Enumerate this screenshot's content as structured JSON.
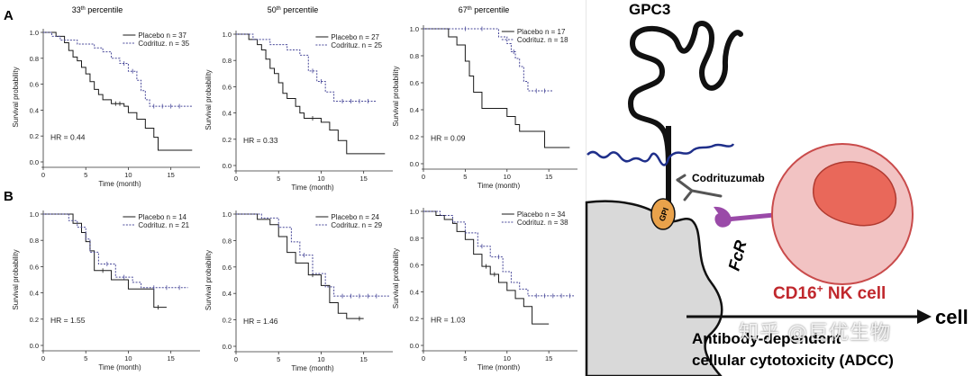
{
  "rows": [
    {
      "letter": "A"
    },
    {
      "letter": "B"
    }
  ],
  "col_titles": [
    {
      "base": "33",
      "sup": "th",
      "rest": " percentile"
    },
    {
      "base": "50",
      "sup": "th",
      "rest": " percentile"
    },
    {
      "base": "67",
      "sup": "th",
      "rest": " percentile"
    }
  ],
  "chart_data": [
    {
      "type": "line",
      "title": "33th percentile",
      "row": "A",
      "xlabel": "Time (month)",
      "ylabel": "Survival probability",
      "xlim": [
        0,
        18
      ],
      "ylim": [
        0,
        1
      ],
      "xticks": [
        0,
        5,
        10,
        15
      ],
      "yticks": [
        0.0,
        0.2,
        0.4,
        0.6,
        0.8,
        1.0
      ],
      "hr": "HR = 0.44",
      "series": [
        {
          "name": "Placebo",
          "legend": "Placebo n = 37",
          "style": "solid",
          "steps": [
            [
              0,
              1.0
            ],
            [
              1.5,
              0.97
            ],
            [
              2.5,
              0.92
            ],
            [
              3.0,
              0.86
            ],
            [
              3.5,
              0.81
            ],
            [
              4.0,
              0.78
            ],
            [
              4.5,
              0.73
            ],
            [
              5.0,
              0.68
            ],
            [
              5.5,
              0.62
            ],
            [
              6.0,
              0.56
            ],
            [
              6.5,
              0.52
            ],
            [
              7.0,
              0.48
            ],
            [
              8.0,
              0.45
            ],
            [
              9.5,
              0.43
            ],
            [
              10.0,
              0.38
            ],
            [
              11.0,
              0.33
            ],
            [
              12.0,
              0.26
            ],
            [
              13.0,
              0.19
            ],
            [
              13.5,
              0.09
            ],
            [
              17.5,
              0.09
            ]
          ],
          "censors": [
            [
              8.5,
              0.45
            ],
            [
              9.0,
              0.45
            ]
          ]
        },
        {
          "name": "Codrituz.",
          "legend": "Codrituz. n = 35",
          "style": "dashed",
          "steps": [
            [
              0,
              1.0
            ],
            [
              1.0,
              0.97
            ],
            [
              2.0,
              0.94
            ],
            [
              4.0,
              0.91
            ],
            [
              6.0,
              0.88
            ],
            [
              7.0,
              0.85
            ],
            [
              8.0,
              0.8
            ],
            [
              9.0,
              0.76
            ],
            [
              10.0,
              0.7
            ],
            [
              11.0,
              0.63
            ],
            [
              11.5,
              0.55
            ],
            [
              12.0,
              0.48
            ],
            [
              12.5,
              0.43
            ],
            [
              17.5,
              0.43
            ]
          ],
          "censors": [
            [
              9.5,
              0.76
            ],
            [
              10.5,
              0.7
            ],
            [
              13.0,
              0.43
            ],
            [
              14.0,
              0.43
            ],
            [
              15.0,
              0.43
            ],
            [
              16.0,
              0.43
            ]
          ]
        }
      ]
    },
    {
      "type": "line",
      "title": "50th percentile",
      "row": "A",
      "xlabel": "Time (month)",
      "ylabel": "Survival probability",
      "xlim": [
        0,
        18
      ],
      "ylim": [
        0,
        1
      ],
      "xticks": [
        0,
        5,
        10,
        15
      ],
      "yticks": [
        0.0,
        0.2,
        0.4,
        0.6,
        0.8,
        1.0
      ],
      "hr": "HR = 0.33",
      "series": [
        {
          "name": "Placebo",
          "legend": "Placebo n = 27",
          "style": "solid",
          "steps": [
            [
              0,
              1.0
            ],
            [
              1.5,
              0.96
            ],
            [
              2.5,
              0.92
            ],
            [
              3.0,
              0.88
            ],
            [
              3.5,
              0.81
            ],
            [
              4.0,
              0.74
            ],
            [
              4.5,
              0.7
            ],
            [
              5.0,
              0.63
            ],
            [
              5.5,
              0.55
            ],
            [
              6.0,
              0.51
            ],
            [
              7.0,
              0.45
            ],
            [
              7.5,
              0.4
            ],
            [
              8.0,
              0.36
            ],
            [
              10.0,
              0.33
            ],
            [
              11.0,
              0.27
            ],
            [
              12.0,
              0.19
            ],
            [
              13.0,
              0.09
            ],
            [
              17.5,
              0.09
            ]
          ],
          "censors": [
            [
              9.0,
              0.36
            ]
          ]
        },
        {
          "name": "Codrituz.",
          "legend": "Codrituz. n = 25",
          "style": "dashed",
          "steps": [
            [
              0,
              1.0
            ],
            [
              2.0,
              0.96
            ],
            [
              4.0,
              0.92
            ],
            [
              6.0,
              0.88
            ],
            [
              7.5,
              0.84
            ],
            [
              8.5,
              0.72
            ],
            [
              9.5,
              0.64
            ],
            [
              10.5,
              0.56
            ],
            [
              11.5,
              0.49
            ],
            [
              16.5,
              0.49
            ]
          ],
          "censors": [
            [
              9.0,
              0.72
            ],
            [
              10.0,
              0.64
            ],
            [
              12.5,
              0.49
            ],
            [
              13.5,
              0.49
            ],
            [
              14.5,
              0.49
            ],
            [
              15.5,
              0.49
            ]
          ]
        }
      ]
    },
    {
      "type": "line",
      "title": "67th percentile",
      "row": "A",
      "xlabel": "Time (month)",
      "ylabel": "Survival probability",
      "xlim": [
        0,
        18
      ],
      "ylim": [
        0,
        1
      ],
      "xticks": [
        0,
        5,
        10,
        15
      ],
      "yticks": [
        0.0,
        0.2,
        0.4,
        0.6,
        0.8,
        1.0
      ],
      "hr": "HR = 0.09",
      "series": [
        {
          "name": "Placebo",
          "legend": "Placebo n = 17",
          "style": "solid",
          "steps": [
            [
              0,
              1.0
            ],
            [
              3.0,
              0.94
            ],
            [
              4.0,
              0.88
            ],
            [
              5.0,
              0.76
            ],
            [
              5.5,
              0.65
            ],
            [
              6.0,
              0.53
            ],
            [
              7.0,
              0.41
            ],
            [
              10.0,
              0.35
            ],
            [
              11.0,
              0.29
            ],
            [
              11.5,
              0.24
            ],
            [
              14.5,
              0.12
            ],
            [
              17.5,
              0.12
            ]
          ],
          "censors": []
        },
        {
          "name": "Codrituz.",
          "legend": "Codrituz. n = 18",
          "style": "dashed",
          "steps": [
            [
              0,
              1.0
            ],
            [
              9.0,
              0.94
            ],
            [
              10.0,
              0.89
            ],
            [
              10.5,
              0.83
            ],
            [
              11.0,
              0.78
            ],
            [
              11.5,
              0.72
            ],
            [
              12.0,
              0.61
            ],
            [
              12.5,
              0.54
            ],
            [
              15.5,
              0.54
            ]
          ],
          "censors": [
            [
              5.0,
              1.0
            ],
            [
              7.0,
              1.0
            ],
            [
              10.8,
              0.83
            ],
            [
              13.5,
              0.54
            ],
            [
              14.5,
              0.54
            ]
          ]
        }
      ]
    },
    {
      "type": "line",
      "title": "",
      "row": "B",
      "xlabel": "Time (month)",
      "ylabel": "Survival probability",
      "xlim": [
        0,
        18
      ],
      "ylim": [
        0,
        1
      ],
      "xticks": [
        0,
        5,
        10,
        15
      ],
      "yticks": [
        0.0,
        0.2,
        0.4,
        0.6,
        0.8,
        1.0
      ],
      "hr": "HR = 1.55",
      "series": [
        {
          "name": "Placebo",
          "legend": "Placebo n = 14",
          "style": "solid",
          "steps": [
            [
              0,
              1.0
            ],
            [
              3.5,
              0.93
            ],
            [
              4.5,
              0.86
            ],
            [
              5.0,
              0.79
            ],
            [
              5.5,
              0.72
            ],
            [
              6.0,
              0.57
            ],
            [
              8.0,
              0.5
            ],
            [
              10.0,
              0.43
            ],
            [
              13.0,
              0.29
            ],
            [
              14.5,
              0.29
            ]
          ],
          "censors": [
            [
              7.0,
              0.57
            ],
            [
              13.5,
              0.29
            ]
          ]
        },
        {
          "name": "Codrituz.",
          "legend": "Codrituz. n = 21",
          "style": "dashed",
          "steps": [
            [
              0,
              1.0
            ],
            [
              3.0,
              0.95
            ],
            [
              4.0,
              0.9
            ],
            [
              5.0,
              0.81
            ],
            [
              5.5,
              0.71
            ],
            [
              6.5,
              0.62
            ],
            [
              8.5,
              0.52
            ],
            [
              10.5,
              0.48
            ],
            [
              11.5,
              0.44
            ],
            [
              17.0,
              0.44
            ]
          ],
          "censors": [
            [
              7.5,
              0.62
            ],
            [
              9.5,
              0.52
            ],
            [
              13.0,
              0.44
            ],
            [
              14.5,
              0.44
            ],
            [
              16.0,
              0.44
            ]
          ]
        }
      ]
    },
    {
      "type": "line",
      "title": "",
      "row": "B",
      "xlabel": "Time (month)",
      "ylabel": "Survival probability",
      "xlim": [
        0,
        18
      ],
      "ylim": [
        0,
        1
      ],
      "xticks": [
        0,
        5,
        10,
        15
      ],
      "yticks": [
        0.0,
        0.2,
        0.4,
        0.6,
        0.8,
        1.0
      ],
      "hr": "HR = 1.46",
      "series": [
        {
          "name": "Placebo",
          "legend": "Placebo n = 24",
          "style": "solid",
          "steps": [
            [
              0,
              1.0
            ],
            [
              2.5,
              0.96
            ],
            [
              4.0,
              0.92
            ],
            [
              5.0,
              0.83
            ],
            [
              6.0,
              0.71
            ],
            [
              7.0,
              0.63
            ],
            [
              8.5,
              0.54
            ],
            [
              10.0,
              0.46
            ],
            [
              11.0,
              0.33
            ],
            [
              12.0,
              0.25
            ],
            [
              13.0,
              0.21
            ],
            [
              15.0,
              0.21
            ]
          ],
          "censors": [
            [
              9.0,
              0.54
            ],
            [
              14.5,
              0.21
            ]
          ]
        },
        {
          "name": "Codrituz.",
          "legend": "Codrituz. n = 29",
          "style": "dashed",
          "steps": [
            [
              0,
              1.0
            ],
            [
              3.0,
              0.97
            ],
            [
              5.0,
              0.9
            ],
            [
              6.5,
              0.79
            ],
            [
              7.5,
              0.69
            ],
            [
              9.0,
              0.55
            ],
            [
              10.5,
              0.45
            ],
            [
              11.5,
              0.38
            ],
            [
              18.0,
              0.38
            ]
          ],
          "censors": [
            [
              8.0,
              0.69
            ],
            [
              12.5,
              0.38
            ],
            [
              13.5,
              0.38
            ],
            [
              14.5,
              0.38
            ],
            [
              15.5,
              0.38
            ],
            [
              16.5,
              0.38
            ]
          ]
        }
      ]
    },
    {
      "type": "line",
      "title": "",
      "row": "B",
      "xlabel": "Time (month)",
      "ylabel": "Survival probability",
      "xlim": [
        0,
        18
      ],
      "ylim": [
        0,
        1
      ],
      "xticks": [
        0,
        5,
        10,
        15
      ],
      "yticks": [
        0.0,
        0.2,
        0.4,
        0.6,
        0.8,
        1.0
      ],
      "hr": "HR = 1.03",
      "series": [
        {
          "name": "Placebo",
          "legend": "Placebo n = 34",
          "style": "solid",
          "steps": [
            [
              0,
              1.0
            ],
            [
              1.5,
              0.97
            ],
            [
              2.5,
              0.94
            ],
            [
              3.5,
              0.91
            ],
            [
              4.0,
              0.85
            ],
            [
              5.0,
              0.79
            ],
            [
              6.0,
              0.68
            ],
            [
              7.0,
              0.59
            ],
            [
              8.0,
              0.53
            ],
            [
              9.0,
              0.47
            ],
            [
              10.0,
              0.41
            ],
            [
              11.0,
              0.35
            ],
            [
              12.0,
              0.29
            ],
            [
              13.0,
              0.16
            ],
            [
              15.0,
              0.16
            ]
          ],
          "censors": [
            [
              7.5,
              0.59
            ],
            [
              8.5,
              0.53
            ]
          ]
        },
        {
          "name": "Codrituz.",
          "legend": "Codrituz. n = 38",
          "style": "dashed",
          "steps": [
            [
              0,
              1.0
            ],
            [
              2.0,
              0.97
            ],
            [
              3.5,
              0.92
            ],
            [
              5.0,
              0.84
            ],
            [
              6.5,
              0.74
            ],
            [
              8.0,
              0.66
            ],
            [
              9.5,
              0.55
            ],
            [
              10.5,
              0.47
            ],
            [
              11.5,
              0.42
            ],
            [
              12.5,
              0.37
            ],
            [
              18.0,
              0.37
            ]
          ],
          "censors": [
            [
              7.0,
              0.74
            ],
            [
              9.0,
              0.66
            ],
            [
              13.5,
              0.37
            ],
            [
              14.5,
              0.37
            ],
            [
              15.5,
              0.37
            ],
            [
              16.5,
              0.37
            ],
            [
              17.5,
              0.37
            ]
          ]
        }
      ]
    }
  ],
  "diagram": {
    "gpc3": "GPC3",
    "codrituzumab": "Codrituzumab",
    "gpi": "GPI",
    "fcr": "FcR",
    "nk_base": "CD16",
    "nk_sup": "+",
    "nk_rest": " NK cell",
    "cell": "cell",
    "adcc_line1": "Antibody-dependent",
    "adcc_line2": "cellular cytotoxicity (ADCC)",
    "watermark": "知乎 @巨优生物"
  },
  "colors": {
    "placebo": "#1a1a1a",
    "codrituz": "#4a4a9a",
    "nk_outer": "#f2c3c3",
    "nk_inner": "#e9685a",
    "fcr": "#9a4aa8",
    "gpi": "#e9a24b",
    "nk_label": "#c0282d",
    "wave": "#1f2f8a"
  }
}
